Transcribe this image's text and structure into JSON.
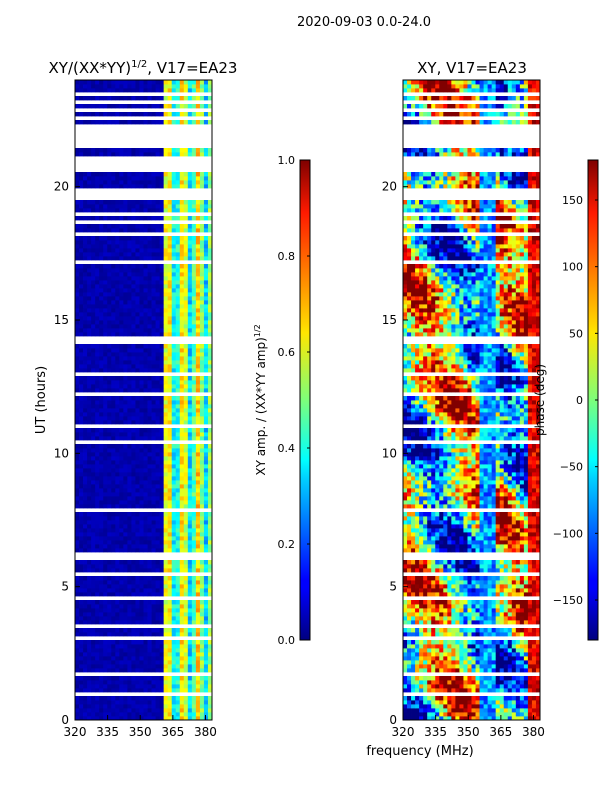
{
  "suptitle": "2020-09-03 0.0-24.0",
  "shared_xlabel": "frequency (MHz)",
  "chart_data": [
    {
      "type": "heatmap",
      "title": "XY/(XX*YY)",
      "title_sup": "1/2",
      "title_suffix": ", V17=EA23",
      "xlabel": "",
      "ylabel": "UT (hours)",
      "xlim": [
        320,
        383
      ],
      "ylim": [
        0,
        24
      ],
      "xticks": [
        320,
        335,
        350,
        365,
        380
      ],
      "yticks": [
        0,
        5,
        10,
        15,
        20
      ],
      "colorbar": {
        "label": "XY amp. / (XX*YY amp)",
        "label_sup": "1/2",
        "range": [
          0.0,
          1.0
        ],
        "ticks": [
          0.0,
          0.2,
          0.4,
          0.6,
          0.8,
          1.0
        ],
        "tick_labels": [
          "0.0",
          "0.2",
          "0.4",
          "0.6",
          "0.8",
          "1.0"
        ],
        "colormap": "jet"
      },
      "description_values": "amplitude ~0.0-0.05 for 320-360 MHz; ~0.3-0.7 for 360-383 MHz"
    },
    {
      "type": "heatmap",
      "title": "XY, V17=EA23",
      "xlabel": "frequency (MHz)",
      "ylabel": "phase (deg)",
      "xlim": [
        320,
        383
      ],
      "ylim": [
        0,
        24
      ],
      "xticks": [
        320,
        335,
        350,
        365,
        380
      ],
      "yticks": [
        0,
        5,
        10,
        15,
        20
      ],
      "colorbar": {
        "label": "phase (deg)",
        "range": [
          -180,
          180
        ],
        "ticks": [
          -150,
          -100,
          -50,
          0,
          50,
          100,
          150
        ],
        "tick_labels": [
          "−150",
          "−100",
          "−50",
          "0",
          "50",
          "100",
          "150"
        ],
        "colormap": "jet"
      }
    }
  ],
  "flagged_gaps_hours": [
    [
      0.95,
      1.0
    ],
    [
      1.7,
      1.75
    ],
    [
      2.5,
      2.55
    ],
    [
      3.05,
      3.1
    ],
    [
      3.3,
      3.35
    ],
    [
      3.5,
      3.55
    ],
    [
      4.55,
      4.6
    ],
    [
      5.45,
      5.5
    ],
    [
      5.95,
      6.25
    ],
    [
      6.9,
      6.95
    ],
    [
      7.3,
      7.35
    ],
    [
      7.6,
      7.65
    ],
    [
      7.85,
      7.9
    ],
    [
      8.2,
      8.25
    ],
    [
      8.5,
      8.55
    ],
    [
      8.95,
      9.0
    ],
    [
      9.85,
      9.9
    ],
    [
      10.4,
      10.45
    ],
    [
      11.0,
      11.05
    ],
    [
      11.7,
      11.75
    ],
    [
      12.2,
      12.25
    ],
    [
      12.55,
      12.6
    ],
    [
      12.95,
      13.0
    ],
    [
      13.5,
      13.55
    ],
    [
      13.75,
      13.8
    ],
    [
      14.15,
      14.2
    ],
    [
      14.3,
      14.35
    ],
    [
      15.45,
      15.5
    ],
    [
      15.9,
      15.95
    ],
    [
      16.3,
      16.35
    ],
    [
      16.6,
      16.7
    ],
    [
      16.9,
      17.0
    ],
    [
      17.15,
      17.2
    ],
    [
      17.5,
      17.6
    ],
    [
      17.95,
      18.05
    ],
    [
      18.2,
      18.3
    ],
    [
      18.6,
      18.7
    ],
    [
      18.95,
      19.1
    ],
    [
      19.5,
      20.0
    ],
    [
      20.5,
      21.2
    ],
    [
      21.5,
      22.3
    ],
    [
      22.55,
      22.6
    ],
    [
      22.85,
      22.9
    ],
    [
      23.15,
      23.2
    ],
    [
      23.45,
      23.5
    ]
  ]
}
